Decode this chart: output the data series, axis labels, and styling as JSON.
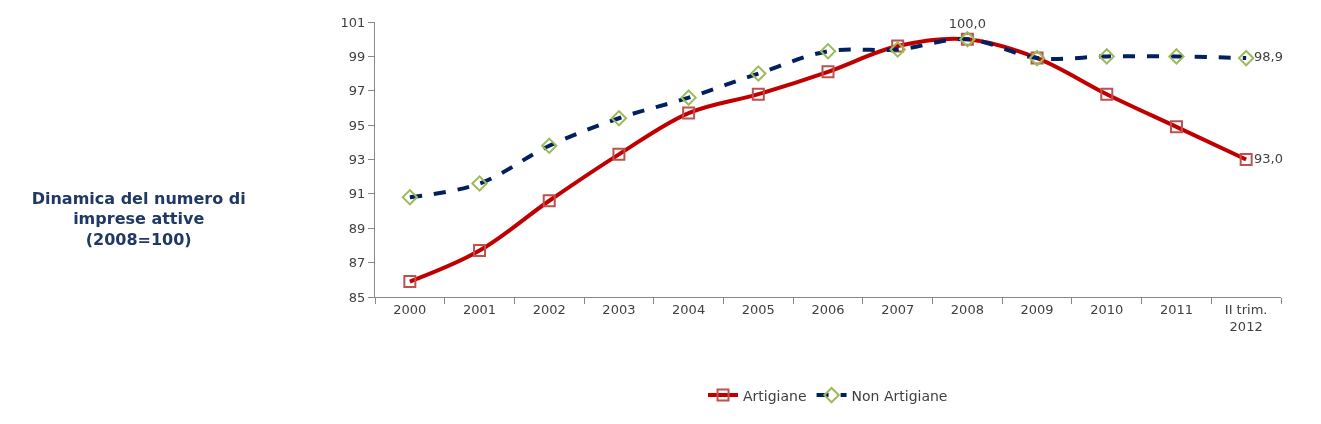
{
  "chart_data": {
    "type": "line",
    "title": "Dinamica del numero di\nimprese attive\n(2008=100)",
    "categories": [
      "2000",
      "2001",
      "2002",
      "2003",
      "2004",
      "2005",
      "2006",
      "2007",
      "2008",
      "2009",
      "2010",
      "2011",
      "II trim.\n2012"
    ],
    "series": [
      {
        "name": "Artigiane",
        "color": "#c00000",
        "marker": "square",
        "line_style": "solid",
        "values": [
          85.9,
          87.7,
          90.6,
          93.3,
          95.7,
          96.8,
          98.1,
          99.6,
          100.0,
          98.9,
          96.8,
          94.9,
          93.0
        ],
        "value_labels": [
          null,
          null,
          null,
          null,
          null,
          null,
          null,
          null,
          "100,0",
          null,
          null,
          null,
          "93,0"
        ]
      },
      {
        "name": "Non Artigiane",
        "color": "#002060",
        "marker": "diamond",
        "line_style": "dashed",
        "values": [
          90.8,
          91.6,
          93.8,
          95.4,
          96.6,
          98.0,
          99.3,
          99.4,
          100.0,
          98.9,
          99.0,
          99.0,
          98.9
        ],
        "value_labels": [
          null,
          null,
          null,
          null,
          null,
          null,
          null,
          null,
          null,
          null,
          null,
          null,
          "98,9"
        ]
      }
    ],
    "ylim": [
      85,
      101
    ],
    "yticks": [
      85,
      87,
      89,
      91,
      93,
      95,
      97,
      99,
      101
    ],
    "legend": "bottom"
  }
}
